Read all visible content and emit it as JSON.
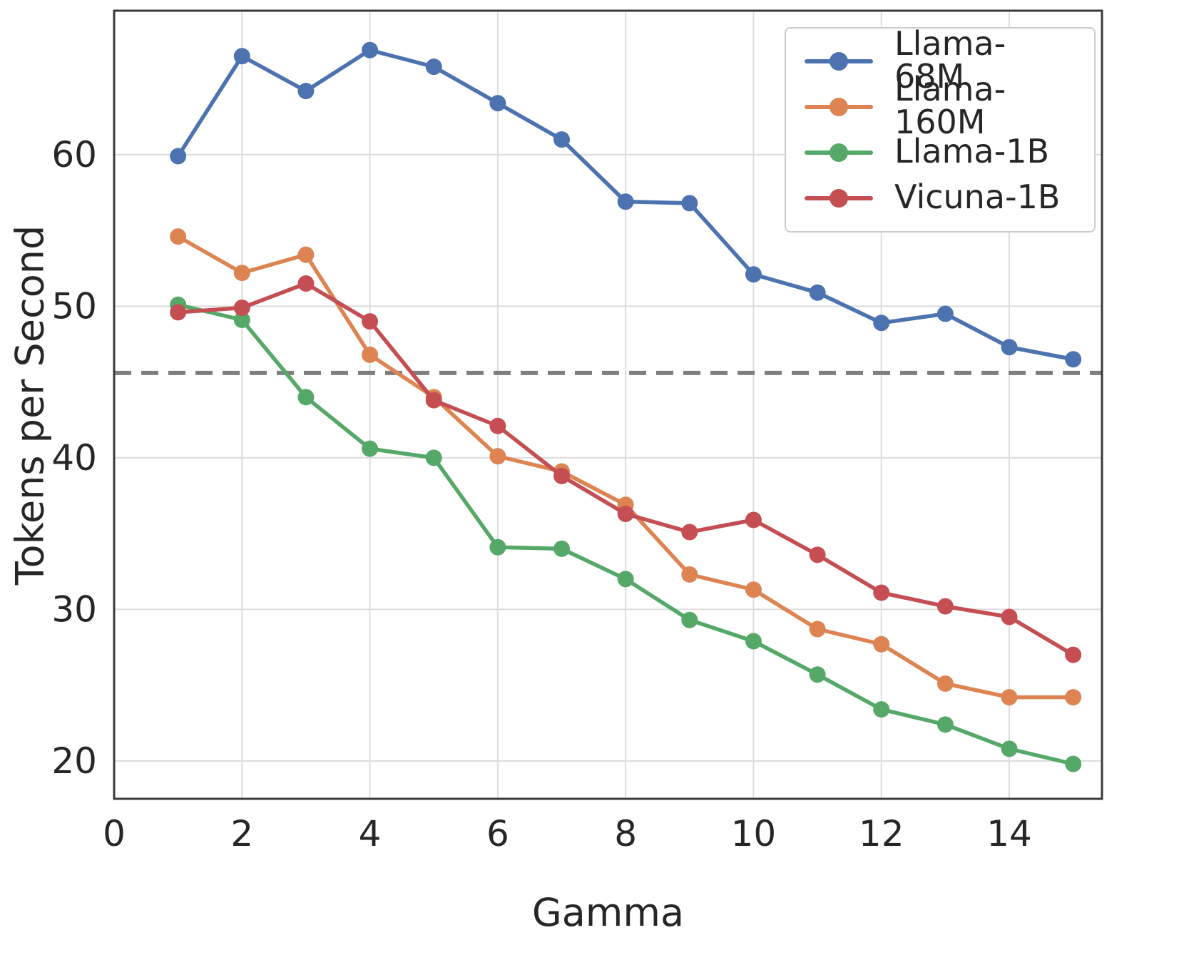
{
  "figure": {
    "background": "#ffffff",
    "grid_color": "#dcdcdc",
    "axis_color": "#3a3a3a",
    "text_color": "#262626"
  },
  "chart_data": {
    "type": "line",
    "title": "",
    "xlabel": "Gamma",
    "ylabel": "Tokens per Second",
    "x": [
      1,
      2,
      3,
      4,
      5,
      6,
      7,
      8,
      9,
      10,
      11,
      12,
      13,
      14,
      15
    ],
    "xlim": [
      0,
      15.45
    ],
    "ylim": [
      17.5,
      69.5
    ],
    "xticks": [
      0,
      2,
      4,
      6,
      8,
      10,
      12,
      14
    ],
    "yticks": [
      20,
      30,
      40,
      50,
      60
    ],
    "grid": true,
    "legend_position": "upper right",
    "baseline": {
      "value": 45.6,
      "style": "dashed",
      "color": "#7f7f7f"
    },
    "series": [
      {
        "name": "Llama-68M",
        "color": "#4C72B0",
        "values": [
          59.9,
          66.5,
          64.2,
          66.9,
          65.8,
          63.4,
          61.0,
          56.9,
          56.8,
          52.1,
          50.9,
          48.9,
          49.5,
          47.3,
          46.5
        ]
      },
      {
        "name": "Llama-160M",
        "color": "#DD8452",
        "values": [
          54.6,
          52.2,
          53.4,
          46.8,
          44.0,
          40.1,
          39.1,
          36.9,
          32.3,
          31.3,
          28.7,
          27.7,
          25.1,
          24.2,
          24.2
        ]
      },
      {
        "name": "Llama-1B",
        "color": "#55A868",
        "values": [
          50.1,
          49.1,
          44.0,
          40.6,
          40.0,
          34.1,
          34.0,
          32.0,
          29.3,
          27.9,
          25.7,
          23.4,
          22.4,
          20.8,
          19.8
        ]
      },
      {
        "name": "Vicuna-1B",
        "color": "#C44E52",
        "values": [
          49.6,
          49.9,
          51.5,
          49.0,
          43.8,
          42.1,
          38.8,
          36.3,
          35.1,
          35.9,
          33.6,
          31.1,
          30.2,
          29.5,
          27.0
        ]
      }
    ]
  }
}
